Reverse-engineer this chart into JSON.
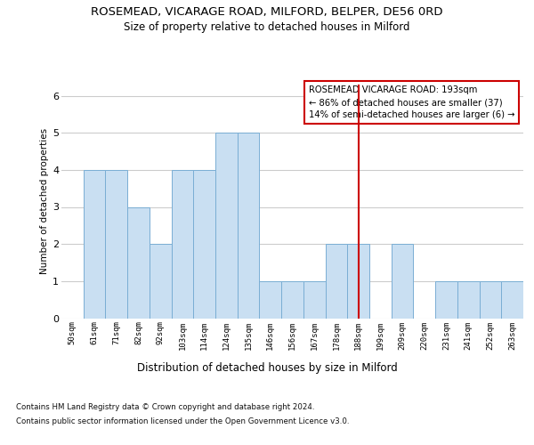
{
  "title1": "ROSEMEAD, VICARAGE ROAD, MILFORD, BELPER, DE56 0RD",
  "title2": "Size of property relative to detached houses in Milford",
  "xlabel": "Distribution of detached houses by size in Milford",
  "ylabel": "Number of detached properties",
  "categories": [
    "50sqm",
    "61sqm",
    "71sqm",
    "82sqm",
    "92sqm",
    "103sqm",
    "114sqm",
    "124sqm",
    "135sqm",
    "146sqm",
    "156sqm",
    "167sqm",
    "178sqm",
    "188sqm",
    "199sqm",
    "209sqm",
    "220sqm",
    "231sqm",
    "241sqm",
    "252sqm",
    "263sqm"
  ],
  "values": [
    0,
    4,
    4,
    3,
    2,
    4,
    4,
    5,
    5,
    1,
    1,
    1,
    2,
    2,
    0,
    2,
    0,
    1,
    1,
    1,
    1
  ],
  "bar_color": "#c9dff2",
  "bar_edgecolor": "#7aaed4",
  "bar_linewidth": 0.7,
  "grid_color": "#cccccc",
  "vline_x_index": 13,
  "vline_color": "#cc0000",
  "annotation_line1": "ROSEMEAD VICARAGE ROAD: 193sqm",
  "annotation_line2": "← 86% of detached houses are smaller (37)",
  "annotation_line3": "14% of semi-detached houses are larger (6) →",
  "ylim": [
    0,
    6.3
  ],
  "yticks": [
    0,
    1,
    2,
    3,
    4,
    5,
    6
  ],
  "footer_line1": "Contains HM Land Registry data © Crown copyright and database right 2024.",
  "footer_line2": "Contains public sector information licensed under the Open Government Licence v3.0.",
  "background_color": "#ffffff"
}
